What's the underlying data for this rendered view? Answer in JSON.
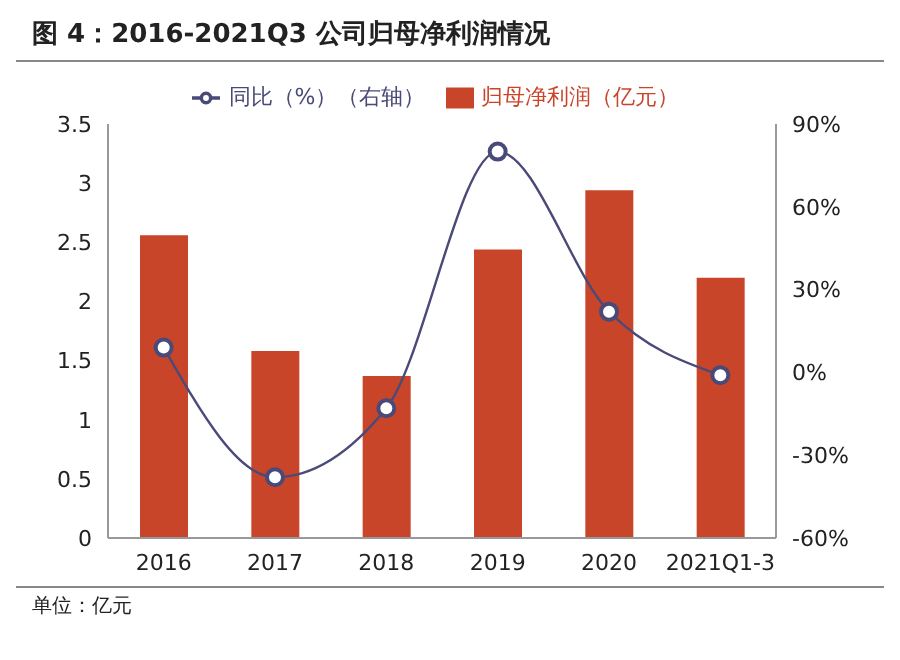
{
  "chart_data": {
    "type": "bar",
    "title": "图 4：2016-2021Q3 公司归母净利润情况",
    "categories": [
      "2016",
      "2017",
      "2018",
      "2019",
      "2020",
      "2021Q1-3"
    ],
    "series": [
      {
        "name": "归母净利润（亿元）",
        "color": "#c9452a",
        "values": [
          2.56,
          1.58,
          1.37,
          2.44,
          2.94,
          2.2
        ]
      },
      {
        "name": "同比（%）（右轴）",
        "type": "line",
        "axis": "y2",
        "color": "#4a4a78",
        "marker": "circle",
        "values": [
          9,
          -38,
          -13,
          80,
          22,
          -1
        ]
      }
    ],
    "ylim": [
      0,
      3.5
    ],
    "yticks": [
      0,
      0.5,
      1,
      1.5,
      2,
      2.5,
      3,
      3.5
    ],
    "y2lim": [
      -60,
      90
    ],
    "y2ticks": [
      {
        "value": -60,
        "label": "-60%"
      },
      {
        "value": -30,
        "label": "-30%"
      },
      {
        "value": 0,
        "label": "0%"
      },
      {
        "value": 30,
        "label": "30%"
      },
      {
        "value": 60,
        "label": "60%"
      },
      {
        "value": 90,
        "label": "90%"
      }
    ],
    "grid": false,
    "legend": "top",
    "annotations": [
      "单位：亿元"
    ]
  }
}
